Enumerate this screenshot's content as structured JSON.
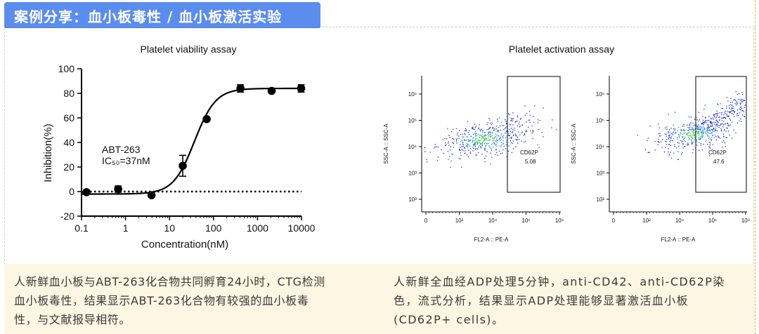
{
  "header": {
    "title": "案例分享：血小板毒性 / 血小板激活实验"
  },
  "accent_color": "#5B8DEF",
  "caption_bg": "#fdf6e3",
  "chart_data": [
    {
      "type": "scatter",
      "title": "Platelet viability assay",
      "xlabel": "Concentration(nM)",
      "ylabel": "Inhibition(%)",
      "xscale": "log",
      "xlim": [
        0.1,
        10000
      ],
      "ylim": [
        -20,
        100
      ],
      "xticks": [
        {
          "v": 0.1,
          "label": "0.1"
        },
        {
          "v": 1,
          "label": "1"
        },
        {
          "v": 10,
          "label": "10"
        },
        {
          "v": 100,
          "label": "100"
        },
        {
          "v": 1000,
          "label": "1000"
        },
        {
          "v": 10000,
          "label": "10000"
        }
      ],
      "yticks": [
        {
          "v": -20,
          "label": "-20"
        },
        {
          "v": 0,
          "label": "0"
        },
        {
          "v": 20,
          "label": "20"
        },
        {
          "v": 40,
          "label": "40"
        },
        {
          "v": 60,
          "label": "60"
        },
        {
          "v": 80,
          "label": "80"
        },
        {
          "v": 100,
          "label": "100"
        }
      ],
      "points": [
        {
          "x": 0.13,
          "y": -0.5,
          "err": 0
        },
        {
          "x": 0.68,
          "y": 2,
          "err": 2.5
        },
        {
          "x": 3.9,
          "y": -3,
          "err": 0
        },
        {
          "x": 20,
          "y": 21,
          "err": 8.5
        },
        {
          "x": 70,
          "y": 59,
          "err": 0
        },
        {
          "x": 410,
          "y": 84,
          "err": 3
        },
        {
          "x": 2100,
          "y": 82,
          "err": 0
        },
        {
          "x": 9800,
          "y": 84,
          "err": 3
        }
      ],
      "fit": {
        "bottom": -2,
        "top": 84,
        "ic50": 37,
        "hill": 1.8
      },
      "baseline": 0,
      "annotation_name": "ABT-263",
      "annotation_ic50": "IC₅₀=37nM"
    },
    {
      "type": "flow_cytometry",
      "title": "Platelet activation assay",
      "xlabel": "FL2-A :: PE-A",
      "ylabel": "SSC-A :: SSC-A",
      "xticks": [
        "0",
        "10²",
        "10⁴",
        "10⁶",
        "10⁸"
      ],
      "yticks": [
        "10²",
        "10³",
        "10⁴",
        "10⁵",
        "10⁶"
      ],
      "plots": [
        {
          "gate_label": "CD62P",
          "gate_value": "5.08"
        },
        {
          "gate_label": "CD62P",
          "gate_value": "47.6"
        }
      ]
    }
  ],
  "captions": {
    "left": [
      "人新鲜血小板与ABT-263化合物共同孵育24小时，CTG检测",
      "血小板毒性，结果显示ABT-263化合物有较强的血小板毒",
      "性，与文献报导相符。"
    ],
    "right": [
      "人新鲜全血经ADP处理5分钟，anti-CD42、anti-CD62P染",
      "色，流式分析，结果显示ADP处理能够显著激活血小板",
      "(CD62P+ cells)。"
    ]
  }
}
